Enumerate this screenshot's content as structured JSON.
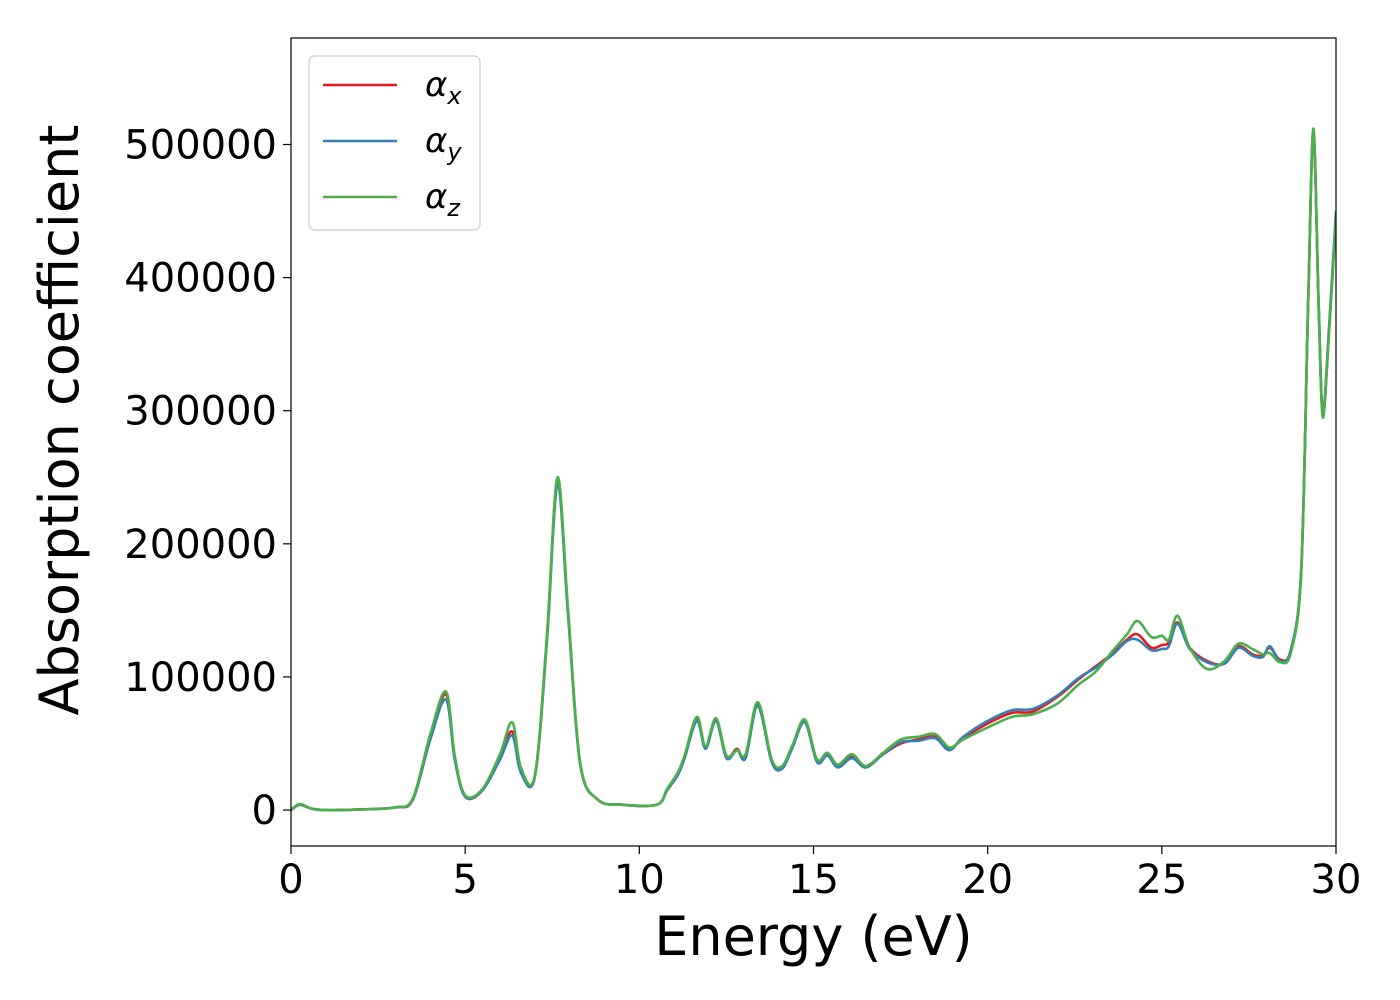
{
  "chart_data": {
    "type": "line",
    "title": "",
    "xlabel": "Energy (eV)",
    "ylabel": "Absorption coefficient",
    "xlim": [
      0,
      30
    ],
    "ylim": [
      -27000,
      580000
    ],
    "xticks": [
      0,
      5,
      10,
      15,
      20,
      25,
      30
    ],
    "yticks": [
      0,
      100000,
      200000,
      300000,
      400000,
      500000
    ],
    "grid": false,
    "legend_position": "top-left",
    "series": [
      {
        "name": "αx",
        "symbol": "α",
        "subscript": "x",
        "color": "#e41a1c",
        "points": [
          [
            0,
            0
          ],
          [
            0.25,
            4000
          ],
          [
            0.6,
            1000
          ],
          [
            1,
            0
          ],
          [
            2,
            500
          ],
          [
            3,
            2000
          ],
          [
            3.5,
            8000
          ],
          [
            4,
            55000
          ],
          [
            4.45,
            87000
          ],
          [
            4.7,
            40000
          ],
          [
            5,
            10000
          ],
          [
            5.5,
            15000
          ],
          [
            6,
            40000
          ],
          [
            6.35,
            59000
          ],
          [
            6.6,
            30000
          ],
          [
            7,
            25000
          ],
          [
            7.35,
            130000
          ],
          [
            7.65,
            248000
          ],
          [
            7.95,
            150000
          ],
          [
            8.3,
            35000
          ],
          [
            8.8,
            8000
          ],
          [
            9.5,
            4000
          ],
          [
            10.5,
            4000
          ],
          [
            10.8,
            15000
          ],
          [
            11.1,
            27000
          ],
          [
            11.3,
            40000
          ],
          [
            11.65,
            69000
          ],
          [
            11.9,
            47000
          ],
          [
            12.2,
            68000
          ],
          [
            12.5,
            40000
          ],
          [
            12.8,
            46000
          ],
          [
            13.05,
            40000
          ],
          [
            13.4,
            80000
          ],
          [
            13.8,
            37000
          ],
          [
            14.1,
            32000
          ],
          [
            14.4,
            48000
          ],
          [
            14.75,
            67000
          ],
          [
            15.1,
            37000
          ],
          [
            15.4,
            42000
          ],
          [
            15.7,
            33000
          ],
          [
            16.1,
            40000
          ],
          [
            16.5,
            33000
          ],
          [
            17,
            42000
          ],
          [
            17.5,
            50000
          ],
          [
            18,
            53000
          ],
          [
            18.5,
            55000
          ],
          [
            18.9,
            46000
          ],
          [
            19.3,
            54000
          ],
          [
            20,
            65000
          ],
          [
            20.7,
            73000
          ],
          [
            21.3,
            74000
          ],
          [
            22,
            85000
          ],
          [
            22.6,
            98000
          ],
          [
            23.1,
            108000
          ],
          [
            23.6,
            118000
          ],
          [
            24,
            128000
          ],
          [
            24.3,
            132000
          ],
          [
            24.7,
            122000
          ],
          [
            25,
            124000
          ],
          [
            25.2,
            126000
          ],
          [
            25.45,
            141000
          ],
          [
            25.8,
            122000
          ],
          [
            26.3,
            112000
          ],
          [
            26.8,
            110000
          ],
          [
            27.2,
            123000
          ],
          [
            27.6,
            117000
          ],
          [
            27.9,
            116000
          ],
          [
            28.1,
            122000
          ],
          [
            28.4,
            113000
          ],
          [
            28.7,
            120000
          ],
          [
            29,
            180000
          ],
          [
            29.2,
            380000
          ],
          [
            29.35,
            508000
          ],
          [
            29.5,
            380000
          ],
          [
            29.62,
            298000
          ],
          [
            29.8,
            360000
          ],
          [
            30,
            448000
          ]
        ]
      },
      {
        "name": "αy",
        "symbol": "α",
        "subscript": "y",
        "color": "#377eb8",
        "points": [
          [
            0,
            0
          ],
          [
            0.25,
            4000
          ],
          [
            0.6,
            1000
          ],
          [
            1,
            0
          ],
          [
            2,
            500
          ],
          [
            3,
            2000
          ],
          [
            3.5,
            8000
          ],
          [
            4,
            53000
          ],
          [
            4.45,
            83000
          ],
          [
            4.7,
            38000
          ],
          [
            5,
            10000
          ],
          [
            5.5,
            15000
          ],
          [
            6,
            38000
          ],
          [
            6.35,
            56000
          ],
          [
            6.6,
            28000
          ],
          [
            7,
            25000
          ],
          [
            7.35,
            128000
          ],
          [
            7.65,
            245000
          ],
          [
            7.95,
            148000
          ],
          [
            8.3,
            35000
          ],
          [
            8.8,
            8000
          ],
          [
            9.5,
            4000
          ],
          [
            10.5,
            4000
          ],
          [
            10.8,
            15000
          ],
          [
            11.1,
            26000
          ],
          [
            11.3,
            39000
          ],
          [
            11.65,
            67000
          ],
          [
            11.9,
            46000
          ],
          [
            12.2,
            67000
          ],
          [
            12.5,
            39000
          ],
          [
            12.8,
            45000
          ],
          [
            13.05,
            39000
          ],
          [
            13.4,
            78000
          ],
          [
            13.8,
            36000
          ],
          [
            14.1,
            31000
          ],
          [
            14.4,
            47000
          ],
          [
            14.75,
            66000
          ],
          [
            15.1,
            36000
          ],
          [
            15.4,
            41000
          ],
          [
            15.7,
            32000
          ],
          [
            16.1,
            39000
          ],
          [
            16.5,
            32000
          ],
          [
            17,
            42000
          ],
          [
            17.5,
            51000
          ],
          [
            18,
            52000
          ],
          [
            18.5,
            54000
          ],
          [
            18.9,
            45000
          ],
          [
            19.3,
            55000
          ],
          [
            20,
            67000
          ],
          [
            20.7,
            75000
          ],
          [
            21.3,
            76000
          ],
          [
            22,
            86000
          ],
          [
            22.6,
            99000
          ],
          [
            23.1,
            107000
          ],
          [
            23.6,
            117000
          ],
          [
            24,
            127000
          ],
          [
            24.3,
            128000
          ],
          [
            24.7,
            120000
          ],
          [
            25,
            121000
          ],
          [
            25.2,
            123000
          ],
          [
            25.45,
            140000
          ],
          [
            25.8,
            121000
          ],
          [
            26.3,
            111000
          ],
          [
            26.8,
            110000
          ],
          [
            27.2,
            122000
          ],
          [
            27.6,
            116000
          ],
          [
            27.9,
            115000
          ],
          [
            28.1,
            123000
          ],
          [
            28.4,
            112000
          ],
          [
            28.7,
            120000
          ],
          [
            29,
            180000
          ],
          [
            29.2,
            380000
          ],
          [
            29.35,
            510000
          ],
          [
            29.5,
            382000
          ],
          [
            29.62,
            297000
          ],
          [
            29.8,
            362000
          ],
          [
            30,
            450000
          ]
        ]
      },
      {
        "name": "αz",
        "symbol": "α",
        "subscript": "z",
        "color": "#4daf4a",
        "points": [
          [
            0,
            0
          ],
          [
            0.25,
            4500
          ],
          [
            0.6,
            1000
          ],
          [
            1,
            0
          ],
          [
            2,
            500
          ],
          [
            3,
            2000
          ],
          [
            3.5,
            9000
          ],
          [
            4,
            57000
          ],
          [
            4.45,
            89000
          ],
          [
            4.7,
            41000
          ],
          [
            5,
            11000
          ],
          [
            5.5,
            16000
          ],
          [
            6,
            42000
          ],
          [
            6.35,
            66000
          ],
          [
            6.6,
            32000
          ],
          [
            7,
            26000
          ],
          [
            7.35,
            132000
          ],
          [
            7.65,
            250000
          ],
          [
            7.95,
            152000
          ],
          [
            8.3,
            36000
          ],
          [
            8.8,
            8000
          ],
          [
            9.5,
            4000
          ],
          [
            10.5,
            4000
          ],
          [
            10.8,
            16000
          ],
          [
            11.1,
            28000
          ],
          [
            11.3,
            41000
          ],
          [
            11.65,
            70000
          ],
          [
            11.9,
            48000
          ],
          [
            12.2,
            69000
          ],
          [
            12.5,
            41000
          ],
          [
            12.8,
            45000
          ],
          [
            13.05,
            42000
          ],
          [
            13.4,
            81000
          ],
          [
            13.8,
            38000
          ],
          [
            14.1,
            33000
          ],
          [
            14.4,
            49000
          ],
          [
            14.75,
            68000
          ],
          [
            15.1,
            38000
          ],
          [
            15.4,
            43000
          ],
          [
            15.7,
            34000
          ],
          [
            16.1,
            42000
          ],
          [
            16.5,
            33000
          ],
          [
            17,
            43000
          ],
          [
            17.5,
            53000
          ],
          [
            18,
            55000
          ],
          [
            18.5,
            57000
          ],
          [
            18.9,
            47000
          ],
          [
            19.3,
            53000
          ],
          [
            20,
            62000
          ],
          [
            20.7,
            70000
          ],
          [
            21.3,
            72000
          ],
          [
            22,
            80000
          ],
          [
            22.6,
            94000
          ],
          [
            23.1,
            104000
          ],
          [
            23.6,
            120000
          ],
          [
            24,
            132000
          ],
          [
            24.3,
            142000
          ],
          [
            24.7,
            130000
          ],
          [
            25,
            131000
          ],
          [
            25.2,
            128000
          ],
          [
            25.45,
            146000
          ],
          [
            25.8,
            122000
          ],
          [
            26.3,
            106000
          ],
          [
            26.8,
            112000
          ],
          [
            27.2,
            125000
          ],
          [
            27.6,
            121000
          ],
          [
            27.9,
            117000
          ],
          [
            28.1,
            118000
          ],
          [
            28.4,
            111000
          ],
          [
            28.7,
            118000
          ],
          [
            29,
            178000
          ],
          [
            29.2,
            378000
          ],
          [
            29.35,
            512000
          ],
          [
            29.5,
            378000
          ],
          [
            29.62,
            295000
          ],
          [
            29.8,
            358000
          ],
          [
            30,
            444000
          ]
        ]
      }
    ]
  }
}
